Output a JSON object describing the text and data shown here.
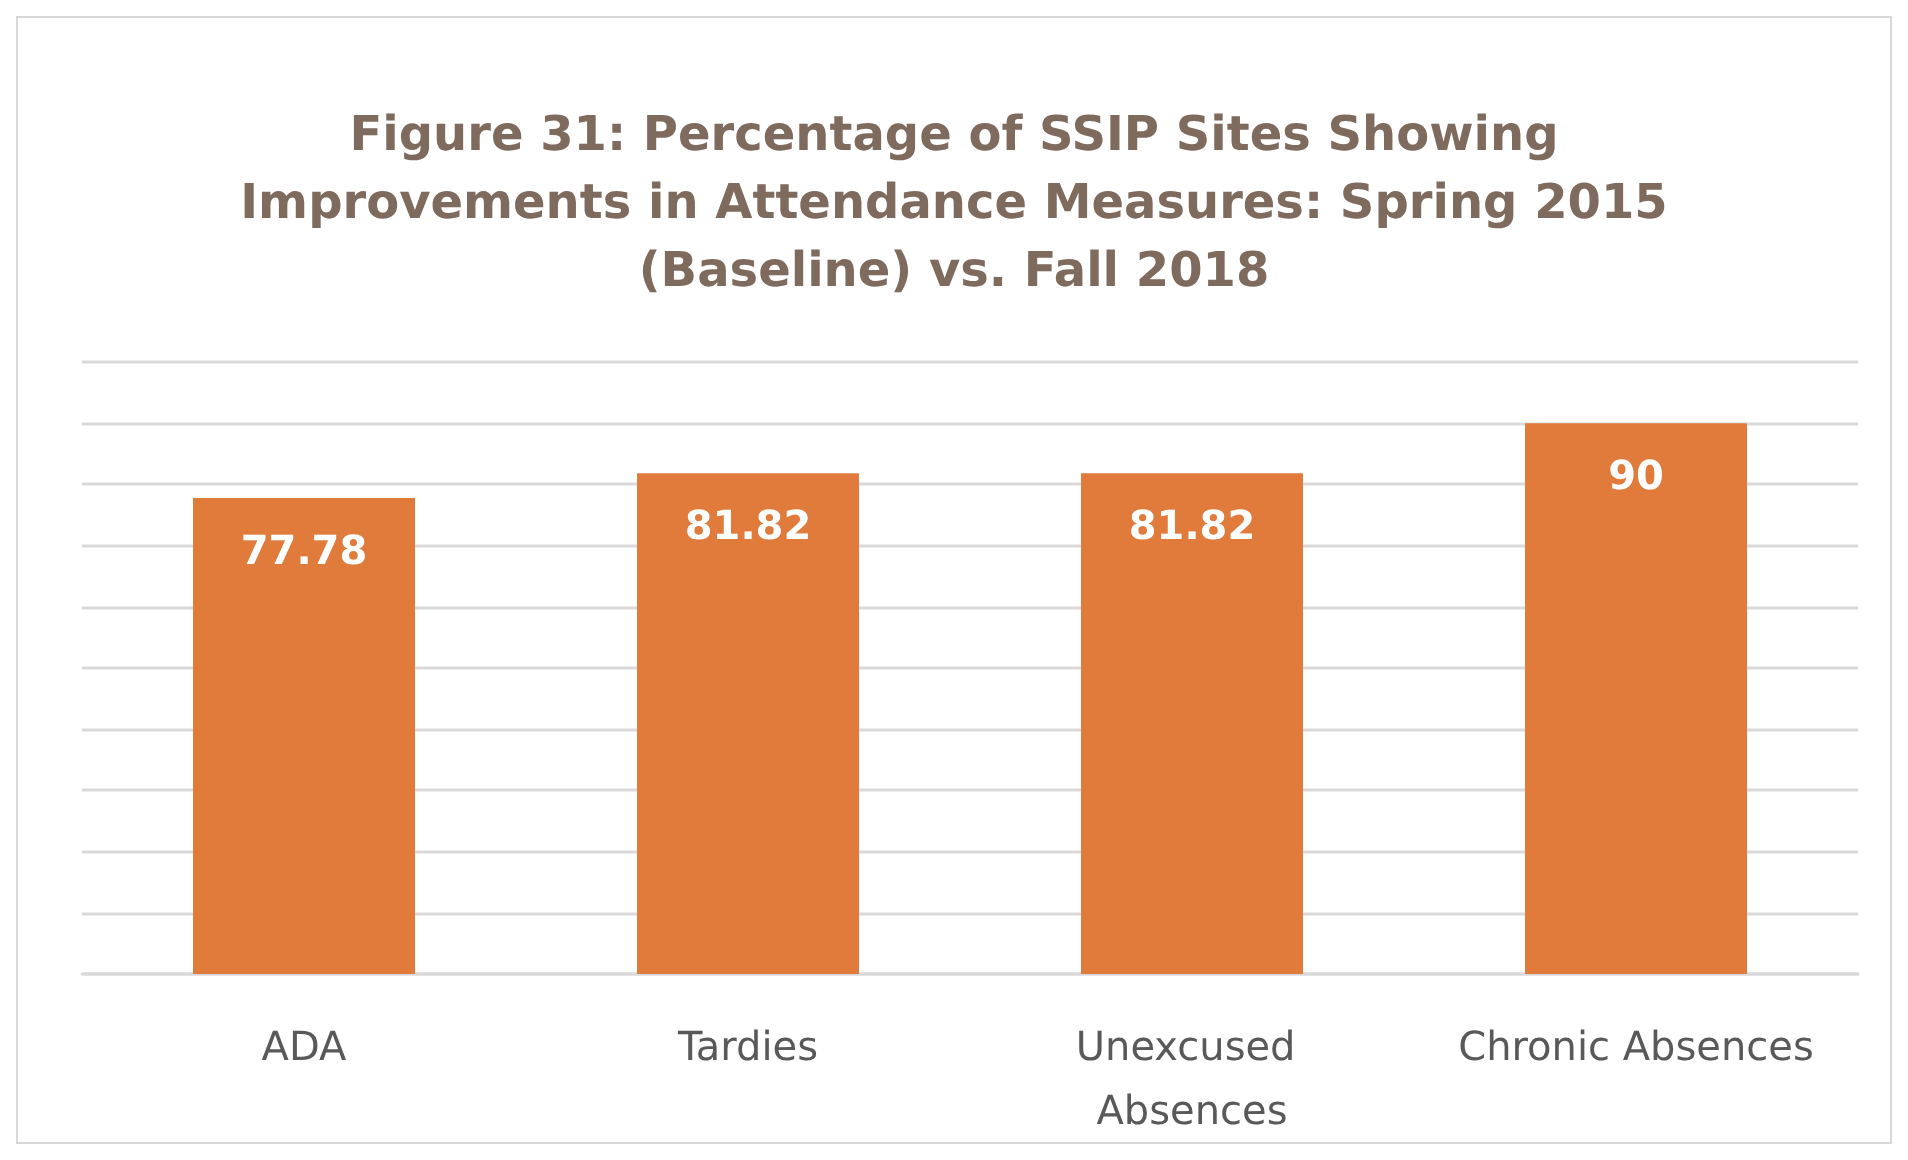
{
  "chart_data": {
    "type": "bar",
    "title": "Figure 31: Percentage of SSIP Sites Showing\nImprovements in Attendance Measures: Spring 2015\n(Baseline) vs. Fall 2018",
    "categories": [
      "ADA",
      "Tardies",
      "Unexcused Absences",
      "Chronic Absences"
    ],
    "values": [
      77.78,
      81.82,
      81.82,
      90
    ],
    "color": "#e07b3c",
    "ylim": [
      0,
      100
    ],
    "yticks": [
      {
        "value": 0,
        "label": null
      },
      {
        "value": 10,
        "label": null
      },
      {
        "value": 20,
        "label": null
      },
      {
        "value": 30,
        "label": null
      },
      {
        "value": 40,
        "label": null
      },
      {
        "value": 50,
        "label": null
      },
      {
        "value": 60,
        "label": null
      },
      {
        "value": 70,
        "label": null
      },
      {
        "value": 80,
        "label": null
      },
      {
        "value": 90,
        "label": null
      },
      {
        "value": 100,
        "label": null
      }
    ],
    "tick_labels": "x",
    "grid": "y",
    "data_labels": true
  }
}
